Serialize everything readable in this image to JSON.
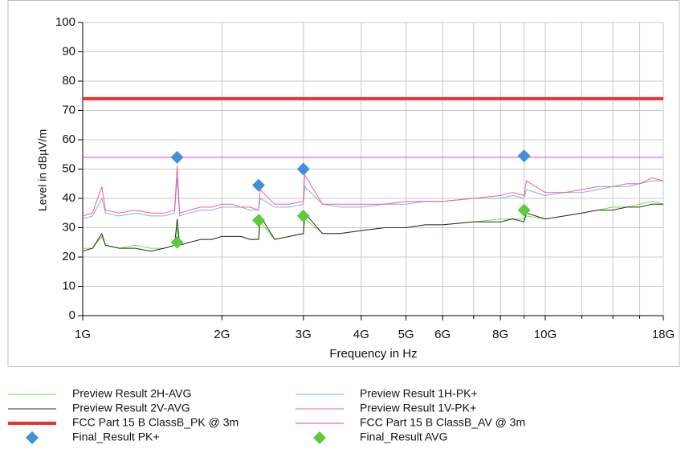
{
  "chart_data": {
    "type": "line",
    "xlabel": "Frequency in Hz",
    "ylabel": "Level in dBµV/m",
    "xscale": "log",
    "grid": true,
    "xlim": [
      1000000000,
      18000000000
    ],
    "xticks": [
      {
        "value": 1000000000,
        "label": "1G"
      },
      {
        "value": 2000000000,
        "label": "2G"
      },
      {
        "value": 3000000000,
        "label": "3G"
      },
      {
        "value": 4000000000,
        "label": "4G"
      },
      {
        "value": 5000000000,
        "label": "5G"
      },
      {
        "value": 6000000000,
        "label": "6G"
      },
      {
        "value": 8000000000,
        "label": "8G"
      },
      {
        "value": 10000000000,
        "label": "10G"
      },
      {
        "value": 18000000000,
        "label": "18G"
      }
    ],
    "xminorticks": [
      7000000000,
      9000000000,
      12000000000,
      14000000000,
      16000000000
    ],
    "ylim": [
      0,
      100
    ],
    "yticks": [
      0,
      10,
      20,
      30,
      40,
      50,
      60,
      70,
      80,
      90,
      100
    ],
    "x": [
      1000000000,
      1050000000,
      1100000000,
      1120000000,
      1200000000,
      1300000000,
      1400000000,
      1500000000,
      1580000000,
      1600000000,
      1620000000,
      1700000000,
      1800000000,
      1900000000,
      2000000000,
      2100000000,
      2200000000,
      2300000000,
      2400000000,
      2420000000,
      2600000000,
      2800000000,
      3000000000,
      3020000000,
      3300000000,
      3600000000,
      4000000000,
      4500000000,
      5000000000,
      5500000000,
      6000000000,
      7000000000,
      8000000000,
      8500000000,
      9000000000,
      9100000000,
      10000000000,
      11000000000,
      12000000000,
      13000000000,
      14000000000,
      15000000000,
      16000000000,
      17000000000,
      18000000000
    ],
    "series": [
      {
        "name": "Preview Result 2H-AVG",
        "color": "#66e633",
        "width": 1,
        "values": [
          23,
          23,
          27,
          24,
          23,
          24,
          23,
          23,
          24,
          30,
          24,
          25,
          26,
          26,
          27,
          27,
          27,
          26,
          26,
          32,
          26,
          27,
          28,
          33,
          28,
          28,
          29,
          30,
          30,
          31,
          31,
          32,
          33,
          33,
          33,
          34,
          33,
          34,
          35,
          36,
          37,
          37,
          38,
          39,
          38
        ]
      },
      {
        "name": "Preview Result 1H-PK+",
        "color": "#7fb2e8",
        "width": 1,
        "values": [
          33,
          34,
          40,
          35,
          34,
          35,
          34,
          34,
          35,
          47,
          34,
          35,
          36,
          36,
          37,
          37,
          37,
          36,
          36,
          40,
          37,
          37,
          38,
          44,
          38,
          37,
          37,
          38,
          38,
          39,
          39,
          40,
          40,
          41,
          40,
          43,
          41,
          42,
          42,
          43,
          44,
          44,
          45,
          46,
          46
        ]
      },
      {
        "name": "Preview Result 2V-AVG",
        "color": "#2a2a2a",
        "width": 1,
        "values": [
          22,
          23,
          28,
          24,
          23,
          23,
          22,
          23,
          24,
          33,
          24,
          25,
          26,
          26,
          27,
          27,
          27,
          26,
          26,
          34,
          26,
          27,
          28,
          35,
          28,
          28,
          29,
          30,
          30,
          31,
          31,
          32,
          32,
          33,
          32,
          35,
          33,
          34,
          35,
          36,
          36,
          37,
          37,
          38,
          38
        ]
      },
      {
        "name": "Preview Result 1V-PK+",
        "color": "#f0609a",
        "width": 1,
        "values": [
          34,
          35,
          44,
          36,
          35,
          36,
          35,
          35,
          36,
          51,
          35,
          36,
          37,
          37,
          38,
          38,
          37,
          37,
          36,
          43,
          38,
          38,
          39,
          48,
          38,
          38,
          38,
          38,
          39,
          39,
          39,
          40,
          41,
          42,
          41,
          46,
          42,
          42,
          43,
          44,
          44,
          45,
          45,
          47,
          46
        ]
      },
      {
        "name": "FCC Part 15 B ClassB_PK @ 3m",
        "color": "#f03030",
        "width": 4,
        "x": [
          1000000000,
          18000000000
        ],
        "values": [
          74,
          74
        ]
      },
      {
        "name": "FCC Part 15 B ClassB_AV @ 3m",
        "color": "#e040e0",
        "width": 1,
        "x": [
          1000000000,
          18000000000
        ],
        "values": [
          54,
          54
        ]
      },
      {
        "name": "Final_Result PK+",
        "color": "#3f8fdc",
        "marker": "diamond",
        "x": [
          1600000000,
          2400000000,
          3000000000,
          9000000000
        ],
        "values": [
          54,
          44.5,
          50,
          54.5
        ]
      },
      {
        "name": "Final_Result AVG",
        "color": "#5ccc3a",
        "marker": "diamond",
        "x": [
          1600000000,
          2400000000,
          3000000000,
          9000000000
        ],
        "values": [
          25,
          32.5,
          34,
          36
        ]
      }
    ]
  }
}
